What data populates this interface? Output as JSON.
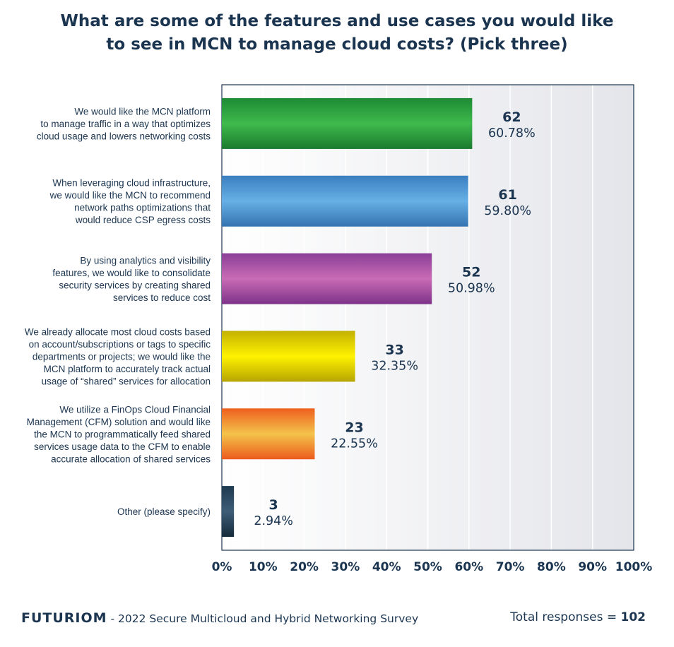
{
  "title": {
    "line1": "What are some of the features and use cases you would like",
    "line2": "to see in MCN to manage cloud costs? (Pick three)"
  },
  "chart_data": {
    "type": "bar",
    "orientation": "horizontal",
    "xlim": [
      0,
      100
    ],
    "x_ticks": [
      "0%",
      "10%",
      "20%",
      "30%",
      "40%",
      "50%",
      "60%",
      "70%",
      "80%",
      "90%",
      "100%"
    ],
    "grid": true,
    "categories": [
      [
        "We would like the MCN platform",
        "to manage traffic in a way that optimizes",
        "cloud usage and lowers networking costs"
      ],
      [
        "When leveraging cloud infrastructure,",
        "we would like the MCN to recommend",
        "network paths optimizations that",
        "would reduce CSP egress costs"
      ],
      [
        "By using analytics and visibility",
        "features, we would like to consolidate",
        "security services by creating shared",
        "services to reduce cost"
      ],
      [
        "We already allocate most cloud costs based",
        "on account/subscriptions or tags to specific",
        "departments or projects; we would like the",
        "MCN platform to accurately track actual",
        "usage of “shared” services for allocation"
      ],
      [
        "We utilize a FinOps Cloud Financial",
        "Management (CFM) solution and would like",
        "the MCN to programmatically feed shared",
        "services usage data to the CFM to enable",
        "accurate allocation of shared services"
      ],
      [
        "Other (please specify)"
      ]
    ],
    "counts": [
      "62",
      "61",
      "52",
      "33",
      "23",
      "3"
    ],
    "percent_labels": [
      "60.78%",
      "59.80%",
      "50.98%",
      "32.35%",
      "22.55%",
      "2.94%"
    ],
    "values": [
      60.78,
      59.8,
      50.98,
      32.35,
      22.55,
      2.94
    ],
    "colors": [
      [
        "#1d8a35",
        "#3fba4c",
        "#1a7a2e"
      ],
      [
        "#3a7fc0",
        "#66b0e6",
        "#3573b0"
      ],
      [
        "#8a3f97",
        "#c96bb5",
        "#7d3389"
      ],
      [
        "#c2b100",
        "#fff200",
        "#b5a500"
      ],
      [
        "#ee5f1e",
        "#f4c34a",
        "#ec5a1c"
      ],
      [
        "#1e3a4f",
        "#3e5d78",
        "#142a3a"
      ]
    ]
  },
  "footer": {
    "brand": "FUTURIOM",
    "source": " - 2022 Secure Multicloud and Hybrid Networking Survey",
    "total_label": "Total responses = ",
    "total_value": "102"
  }
}
